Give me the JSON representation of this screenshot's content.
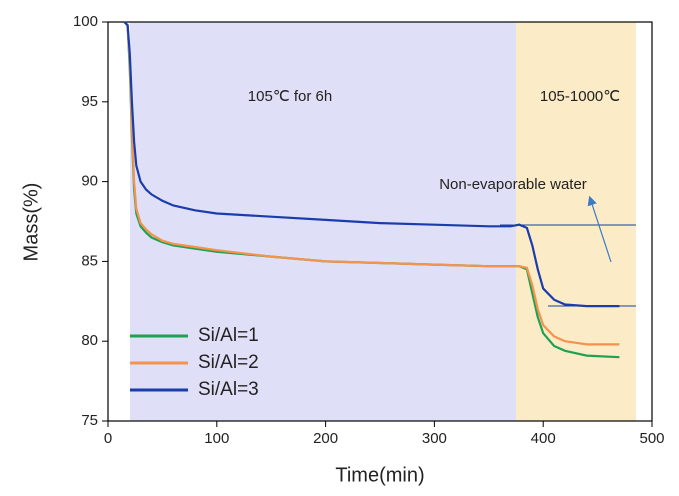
{
  "chart_data": {
    "type": "line",
    "xlabel": "Time(min)",
    "ylabel": "Mass(%)",
    "x": [
      15,
      18,
      20,
      22,
      24,
      26,
      30,
      35,
      40,
      50,
      60,
      80,
      100,
      150,
      200,
      250,
      300,
      350,
      370,
      378,
      385,
      390,
      395,
      400,
      410,
      420,
      440,
      470
    ],
    "series": [
      {
        "name": "Si/Al=1",
        "color": "#1fa152",
        "values": [
          100,
          99.8,
          97,
          93,
          89.5,
          88,
          87.2,
          86.8,
          86.5,
          86.2,
          86,
          85.8,
          85.6,
          85.3,
          85,
          84.9,
          84.8,
          84.7,
          84.7,
          84.7,
          84.5,
          83,
          81.5,
          80.5,
          79.7,
          79.4,
          79.1,
          79
        ]
      },
      {
        "name": "Si/Al=2",
        "color": "#f5924e",
        "values": [
          100,
          99.8,
          97.5,
          93.5,
          90,
          88.3,
          87.4,
          87,
          86.7,
          86.3,
          86.1,
          85.9,
          85.7,
          85.3,
          85,
          84.9,
          84.8,
          84.7,
          84.7,
          84.7,
          84.6,
          83.5,
          82,
          81,
          80.3,
          80,
          79.8,
          79.8
        ]
      },
      {
        "name": "Si/Al=3",
        "color": "#1a3cad",
        "values": [
          100,
          99.8,
          98,
          95,
          92.5,
          91,
          90,
          89.5,
          89.2,
          88.8,
          88.5,
          88.2,
          88,
          87.8,
          87.6,
          87.4,
          87.3,
          87.2,
          87.2,
          87.3,
          87.1,
          86,
          84.5,
          83.3,
          82.6,
          82.3,
          82.2,
          82.2
        ]
      }
    ],
    "xlim": [
      0,
      500
    ],
    "xticks": [
      0,
      100,
      200,
      300,
      400,
      500
    ],
    "ylim": [
      75,
      100
    ],
    "yticks": [
      75,
      80,
      85,
      90,
      95,
      100
    ],
    "annotations": [
      "105℃ for 6h",
      "105-1000℃",
      "Non-evaporable water"
    ]
  }
}
